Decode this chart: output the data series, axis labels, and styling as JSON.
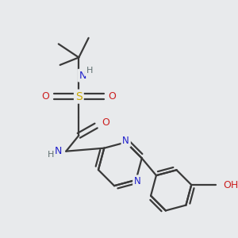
{
  "background_color": "#e8eaec",
  "bond_color": "#3a3a3a",
  "atom_colors": {
    "N": "#2020cc",
    "O": "#cc2020",
    "S": "#ccaa00",
    "C": "#3a3a3a",
    "H": "#607070"
  },
  "figsize": [
    3.0,
    3.0
  ],
  "dpi": 100
}
